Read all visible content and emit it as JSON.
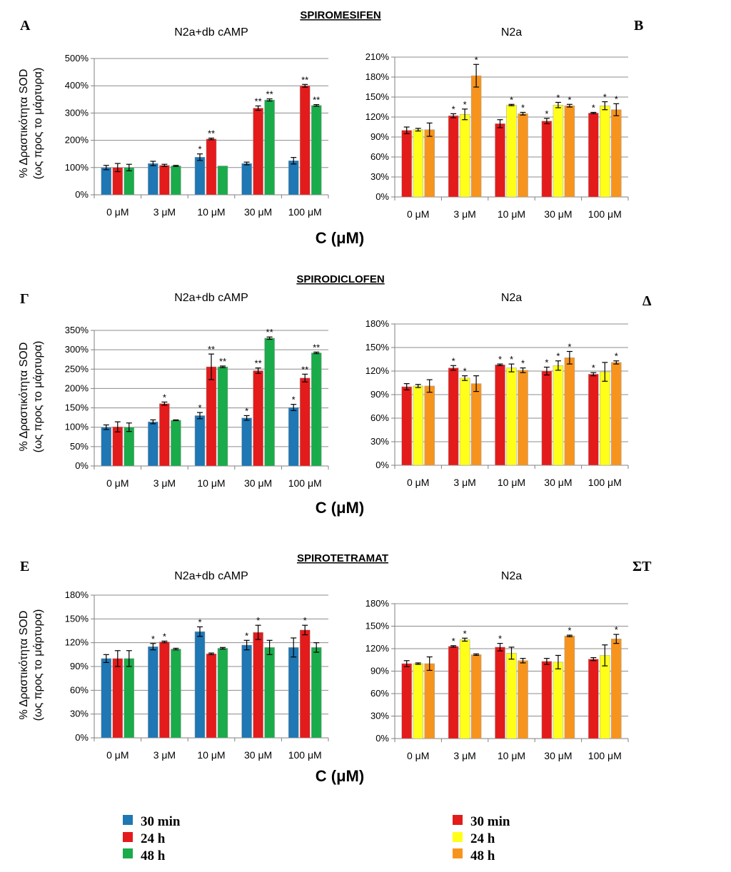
{
  "section_titles": [
    "SPIROMESIFEN",
    "SPIRODICLOFEN",
    "SPIROTETRAMAT"
  ],
  "panel_letters": [
    "A",
    "B",
    "Γ",
    "Δ",
    "E",
    "ΣΤ"
  ],
  "y_axis_label_line1": "% Δραστικότητα SOD",
  "y_axis_label_line2": "(ως προς το μάρτυρα)",
  "x_axis_label": "C (μM)",
  "colors": {
    "blue": "#1f77b4",
    "red": "#e41b1b",
    "green": "#1aab4b",
    "yellow": "#ffff1a",
    "orange": "#f7941d"
  },
  "legends": [
    {
      "items": [
        {
          "label": "30 min",
          "color": "#1f77b4"
        },
        {
          "label": "24 h",
          "color": "#e41b1b"
        },
        {
          "label": "48 h",
          "color": "#1aab4b"
        }
      ]
    },
    {
      "items": [
        {
          "label": "30 min",
          "color": "#e41b1b"
        },
        {
          "label": "24 h",
          "color": "#ffff1a"
        },
        {
          "label": "48 h",
          "color": "#f7941d"
        }
      ]
    }
  ],
  "chart_data": [
    {
      "type": "bar",
      "panel": "A",
      "title": "N2a+db cAMP",
      "categories": [
        "0 μM",
        "3 μM",
        "10 μM",
        "30 μM",
        "100 μM"
      ],
      "ylim": [
        0,
        500
      ],
      "yticks": [
        0,
        100,
        200,
        300,
        400,
        500
      ],
      "ytick_labels": [
        "0%",
        "100%",
        "200%",
        "300%",
        "400%",
        "500%"
      ],
      "series": [
        {
          "name": "30 min",
          "color": "#1f77b4",
          "values": [
            100,
            115,
            138,
            115,
            125
          ],
          "errors": [
            8,
            8,
            12,
            5,
            12
          ],
          "sig": [
            "",
            "",
            "*",
            "",
            ""
          ]
        },
        {
          "name": "24 h",
          "color": "#e41b1b",
          "values": [
            100,
            108,
            205,
            318,
            400
          ],
          "errors": [
            15,
            4,
            3,
            8,
            5
          ],
          "sig": [
            "",
            "",
            "**",
            "**",
            "**"
          ]
        },
        {
          "name": "48 h",
          "color": "#1aab4b",
          "values": [
            100,
            106,
            106,
            348,
            328
          ],
          "errors": [
            12,
            2,
            0,
            4,
            3
          ],
          "sig": [
            "",
            "",
            "",
            "**",
            "**"
          ]
        }
      ]
    },
    {
      "type": "bar",
      "panel": "B",
      "title": "N2a",
      "categories": [
        "0 μM",
        "3 μM",
        "10 μM",
        "30 μM",
        "100 μM"
      ],
      "ylim": [
        0,
        210
      ],
      "yticks": [
        0,
        30,
        60,
        90,
        120,
        150,
        180,
        210
      ],
      "ytick_labels": [
        "0%",
        "30%",
        "60%",
        "90%",
        "120%",
        "150%",
        "180%",
        "210%"
      ],
      "series": [
        {
          "name": "30 min",
          "color": "#e41b1b",
          "values": [
            100,
            122,
            110,
            114,
            126
          ],
          "errors": [
            5,
            3,
            6,
            4,
            1
          ],
          "sig": [
            "",
            "*",
            "",
            "*",
            "*"
          ]
        },
        {
          "name": "24 h",
          "color": "#ffff1a",
          "values": [
            101,
            124,
            138,
            138,
            137
          ],
          "errors": [
            2,
            8,
            1,
            4,
            6
          ],
          "sig": [
            "",
            "*",
            "*",
            "*",
            "*"
          ]
        },
        {
          "name": "48 h",
          "color": "#f7941d",
          "values": [
            101,
            182,
            125,
            137,
            131
          ],
          "errors": [
            10,
            17,
            2,
            2,
            9
          ],
          "sig": [
            "",
            "*",
            "*",
            "*",
            "*"
          ]
        }
      ]
    },
    {
      "type": "bar",
      "panel": "Γ",
      "title": "N2a+db cAMP",
      "categories": [
        "0 μM",
        "3 μM",
        "10 μM",
        "30 μM",
        "100 μM"
      ],
      "ylim": [
        0,
        350
      ],
      "yticks": [
        0,
        50,
        100,
        150,
        200,
        250,
        300,
        350
      ],
      "ytick_labels": [
        "0%",
        "50%",
        "100%",
        "150%",
        "200%",
        "250%",
        "300%",
        "350%"
      ],
      "series": [
        {
          "name": "30 min",
          "color": "#1f77b4",
          "values": [
            100,
            114,
            130,
            124,
            151
          ],
          "errors": [
            6,
            5,
            8,
            6,
            8
          ],
          "sig": [
            "",
            "",
            "*",
            "*",
            "*"
          ]
        },
        {
          "name": "24 h",
          "color": "#e41b1b",
          "values": [
            101,
            161,
            256,
            246,
            227
          ],
          "errors": [
            13,
            4,
            33,
            7,
            10
          ],
          "sig": [
            "",
            "*",
            "**",
            "**",
            "**"
          ]
        },
        {
          "name": "48 h",
          "color": "#1aab4b",
          "values": [
            100,
            118,
            256,
            330,
            292
          ],
          "errors": [
            11,
            1,
            2,
            3,
            2
          ],
          "sig": [
            "",
            "",
            "**",
            "**",
            "**"
          ]
        }
      ]
    },
    {
      "type": "bar",
      "panel": "Δ",
      "title": "N2a",
      "categories": [
        "0 μM",
        "3 μM",
        "10 μM",
        "30 μM",
        "100 μM"
      ],
      "ylim": [
        0,
        180
      ],
      "yticks": [
        0,
        30,
        60,
        90,
        120,
        150,
        180
      ],
      "ytick_labels": [
        "0%",
        "30%",
        "60%",
        "90%",
        "120%",
        "150%",
        "180%"
      ],
      "series": [
        {
          "name": "30 min",
          "color": "#e41b1b",
          "values": [
            100,
            124,
            128,
            120,
            116
          ],
          "errors": [
            4,
            3,
            1,
            5,
            2
          ],
          "sig": [
            "",
            "*",
            "*",
            "*",
            "*"
          ]
        },
        {
          "name": "24 h",
          "color": "#ffff1a",
          "values": [
            101,
            111,
            124,
            127,
            119
          ],
          "errors": [
            2,
            3,
            5,
            6,
            12
          ],
          "sig": [
            "",
            "*",
            "*",
            "*",
            ""
          ]
        },
        {
          "name": "48 h",
          "color": "#f7941d",
          "values": [
            101,
            104,
            121,
            137,
            131
          ],
          "errors": [
            8,
            10,
            3,
            8,
            2
          ],
          "sig": [
            "",
            "",
            "*",
            "*",
            "*"
          ]
        }
      ]
    },
    {
      "type": "bar",
      "panel": "E",
      "title": "N2a+db cAMP",
      "categories": [
        "0 μM",
        "3 μM",
        "10 μM",
        "30 μM",
        "100 μM"
      ],
      "ylim": [
        0,
        180
      ],
      "yticks": [
        0,
        30,
        60,
        90,
        120,
        150,
        180
      ],
      "ytick_labels": [
        "0%",
        "30%",
        "60%",
        "90%",
        "120%",
        "150%",
        "180%"
      ],
      "series": [
        {
          "name": "30 min",
          "color": "#1f77b4",
          "values": [
            100,
            115,
            134,
            117,
            114
          ],
          "errors": [
            5,
            4,
            6,
            6,
            12
          ],
          "sig": [
            "",
            "*",
            "*",
            "*",
            ""
          ]
        },
        {
          "name": "24 h",
          "color": "#e41b1b",
          "values": [
            100,
            121,
            106,
            133,
            136
          ],
          "errors": [
            10,
            1,
            1,
            9,
            6
          ],
          "sig": [
            "",
            "*",
            "",
            "*",
            "*"
          ]
        },
        {
          "name": "48 h",
          "color": "#1aab4b",
          "values": [
            100,
            112,
            113,
            114,
            114
          ],
          "errors": [
            10,
            1,
            1,
            9,
            6
          ],
          "sig": [
            "",
            "",
            "",
            "",
            ""
          ]
        }
      ]
    },
    {
      "type": "bar",
      "panel": "ΣΤ",
      "title": "N2a",
      "categories": [
        "0 μM",
        "3 μM",
        "10 μM",
        "30 μM",
        "100 μM"
      ],
      "ylim": [
        0,
        180
      ],
      "yticks": [
        0,
        30,
        60,
        90,
        120,
        150,
        180
      ],
      "ytick_labels": [
        "0%",
        "30%",
        "60%",
        "90%",
        "120%",
        "150%",
        "180%"
      ],
      "series": [
        {
          "name": "30 min",
          "color": "#e41b1b",
          "values": [
            100,
            123,
            122,
            103,
            106
          ],
          "errors": [
            4,
            1,
            5,
            4,
            2
          ],
          "sig": [
            "",
            "*",
            "*",
            "",
            ""
          ]
        },
        {
          "name": "24 h",
          "color": "#ffff1a",
          "values": [
            100,
            132,
            114,
            102,
            111
          ],
          "errors": [
            1,
            2,
            8,
            9,
            14
          ],
          "sig": [
            "",
            "*",
            "",
            "",
            ""
          ]
        },
        {
          "name": "48 h",
          "color": "#f7941d",
          "values": [
            100,
            112,
            104,
            137,
            133
          ],
          "errors": [
            9,
            1,
            3,
            1,
            6
          ],
          "sig": [
            "",
            "",
            "",
            "*",
            "*"
          ]
        }
      ]
    }
  ]
}
